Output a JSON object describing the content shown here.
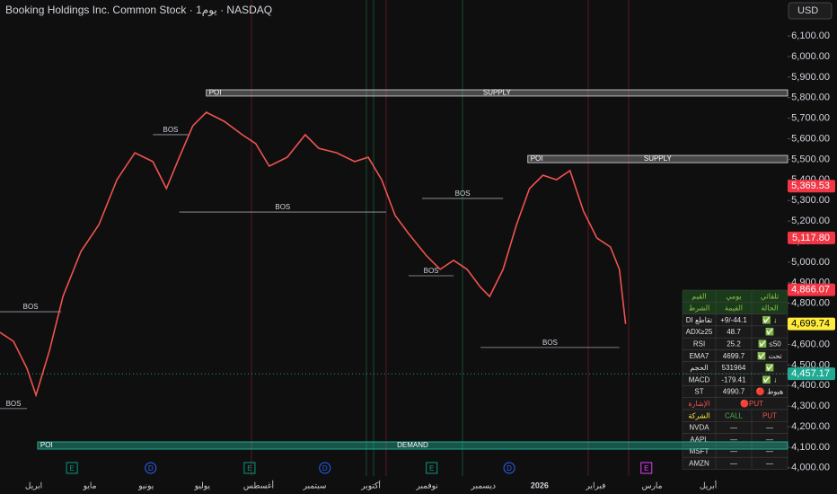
{
  "header": {
    "title": "Booking Holdings Inc. Common Stock · 1يوم · NASDAQ",
    "currency": "USD"
  },
  "chart_data": {
    "type": "line",
    "color": "#ef5350",
    "grid": false,
    "x": [
      -0.6,
      -0.36,
      -0.12,
      0.04,
      0.28,
      0.52,
      0.84,
      1.16,
      1.48,
      1.8,
      2.12,
      2.36,
      2.59,
      2.83,
      3.07,
      3.39,
      3.71,
      3.95,
      4.19,
      4.51,
      4.83,
      5.07,
      5.39,
      5.71,
      5.95,
      6.19,
      6.43,
      6.67,
      6.99,
      7.23,
      7.47,
      7.71,
      7.95,
      8.11,
      8.35,
      8.59,
      8.82,
      9.06,
      9.3,
      9.54,
      9.78,
      10.02,
      10.26,
      10.42,
      10.53
    ],
    "values": [
      4659,
      4615,
      4484,
      4353,
      4570,
      4833,
      5052,
      5183,
      5401,
      5532,
      5489,
      5358,
      5510,
      5663,
      5729,
      5685,
      5620,
      5576,
      5467,
      5510,
      5620,
      5554,
      5532,
      5489,
      5510,
      5401,
      5227,
      5139,
      5030,
      4965,
      5009,
      4965,
      4878,
      4833,
      4965,
      5183,
      5358,
      5423,
      5401,
      5445,
      5248,
      5117,
      5074,
      4965,
      4700
    ],
    "xlim": [
      -0.6,
      13.3
    ],
    "xticks": [
      {
        "value": 0,
        "label": "ابريل"
      },
      {
        "value": 1,
        "label": "مايو"
      },
      {
        "value": 2,
        "label": "يونيو"
      },
      {
        "value": 3,
        "label": "يوليو"
      },
      {
        "value": 4,
        "label": "أغسطس"
      },
      {
        "value": 5,
        "label": "سبتمبر"
      },
      {
        "value": 6,
        "label": "أكتوبر"
      },
      {
        "value": 7,
        "label": "نوفمبر"
      },
      {
        "value": 8,
        "label": "ديسمبر"
      },
      {
        "value": 9,
        "label": "2026"
      },
      {
        "value": 10,
        "label": "فبراير"
      },
      {
        "value": 11,
        "label": "مارس"
      },
      {
        "value": 12,
        "label": "أبريل"
      }
    ],
    "ylim": [
      3960,
      6275
    ],
    "yticks": [
      {
        "value": 4000,
        "label": "4,000.00"
      },
      {
        "value": 4100,
        "label": "4,100.00"
      },
      {
        "value": 4200,
        "label": "4,200.00"
      },
      {
        "value": 4300,
        "label": "4,300.00"
      },
      {
        "value": 4400,
        "label": "4,400.00"
      },
      {
        "value": 4500,
        "label": "4,500.00"
      },
      {
        "value": 4600,
        "label": "4,600.00"
      },
      {
        "value": 4700,
        "label": "4,700.00"
      },
      {
        "value": 4800,
        "label": "4,800.00"
      },
      {
        "value": 4900,
        "label": "4,900.00"
      },
      {
        "value": 5000,
        "label": "5,000.00"
      },
      {
        "value": 5100,
        "label": "5,100.00"
      },
      {
        "value": 5200,
        "label": "5,200.00"
      },
      {
        "value": 5300,
        "label": "5,300.00"
      },
      {
        "value": 5400,
        "label": "5,400.00"
      },
      {
        "value": 5500,
        "label": "5,500.00"
      },
      {
        "value": 5600,
        "label": "5,600.00"
      },
      {
        "value": 5700,
        "label": "5,700.00"
      },
      {
        "value": 5800,
        "label": "5,800.00"
      },
      {
        "value": 5900,
        "label": "5,900.00"
      },
      {
        "value": 6000,
        "label": "6,000.00"
      },
      {
        "value": 6100,
        "label": "6,100.00"
      }
    ],
    "price_labels": [
      {
        "value": 5369.53,
        "label": "5,369.53",
        "color": "#f23645"
      },
      {
        "value": 5117.8,
        "label": "5,117.80",
        "color": "#f23645"
      },
      {
        "value": 4866.07,
        "label": "4,866.07",
        "color": "#f23645"
      },
      {
        "value": 4699.74,
        "label": "4,699.74",
        "color": "#ffeb3b"
      },
      {
        "value": 4457.17,
        "label": "4,457.17",
        "color": "#22ab94"
      }
    ],
    "zones": [
      {
        "left": "POI",
        "right": "SUPPLY",
        "x0": 3.07,
        "ylim": [
          5808,
          5838
        ]
      },
      {
        "left": "POI",
        "right": "SUPPLY",
        "x0": 8.79,
        "ylim": [
          5484,
          5519
        ]
      },
      {
        "left": "POI",
        "right": "DEMAND",
        "x0": 0.07,
        "ylim": [
          4091,
          4126
        ]
      }
    ],
    "bos": [
      {
        "label": "BOS",
        "price": 4759,
        "x": [
          -0.6,
          0.49
        ]
      },
      {
        "label": "BOS",
        "price": 4288,
        "x": [
          -0.6,
          -0.12
        ]
      },
      {
        "label": "BOS",
        "price": 5620,
        "x": [
          2.12,
          2.75
        ]
      },
      {
        "label": "BOS",
        "price": 5244,
        "x": [
          2.59,
          6.27
        ]
      },
      {
        "label": "BOS",
        "price": 4934,
        "x": [
          6.67,
          7.47
        ]
      },
      {
        "label": "BOS",
        "price": 5310,
        "x": [
          6.91,
          8.35
        ]
      },
      {
        "label": "BOS",
        "price": 4585,
        "x": [
          7.95,
          10.42
        ]
      }
    ],
    "events": [
      {
        "x": 0.68,
        "label": "E",
        "color": "#089981"
      },
      {
        "x": 2.08,
        "label": "D",
        "color": "#2962ff"
      },
      {
        "x": 3.84,
        "label": "E",
        "color": "#089981"
      },
      {
        "x": 5.18,
        "label": "D",
        "color": "#2962ff"
      },
      {
        "x": 7.08,
        "label": "E",
        "color": "#089981"
      },
      {
        "x": 8.46,
        "label": "D",
        "color": "#2962ff"
      },
      {
        "x": 10.9,
        "label": "E",
        "color": "#e040fb"
      }
    ]
  },
  "table": {
    "rows": [
      [
        "القيم",
        "يومي",
        "تلقائي"
      ],
      [
        "الشرط",
        "القيمة",
        "الحالة"
      ],
      [
        "DI تقاطع",
        "+9/-44.1",
        "✅ ↓"
      ],
      [
        "ADX≥25",
        "48.7",
        "✅"
      ],
      [
        "RSI",
        "25.2",
        "✅ ≤50"
      ],
      [
        "EMA7",
        "4699.7",
        "✅ تحت"
      ],
      [
        "الحجم",
        "531964",
        "✅"
      ],
      [
        "MACD",
        "-179.41",
        "✅ ↓"
      ],
      [
        "ST",
        "4990.7",
        "🔴 هبوط"
      ],
      [
        "الإشارة",
        "🔴PUT"
      ],
      [
        "الشركة",
        "CALL",
        "PUT"
      ],
      [
        "NVDA",
        "—",
        "—"
      ],
      [
        "AAPL",
        "—",
        "—"
      ],
      [
        "MSFT",
        "—",
        "—"
      ],
      [
        "AMZN",
        "—",
        "—"
      ]
    ]
  }
}
